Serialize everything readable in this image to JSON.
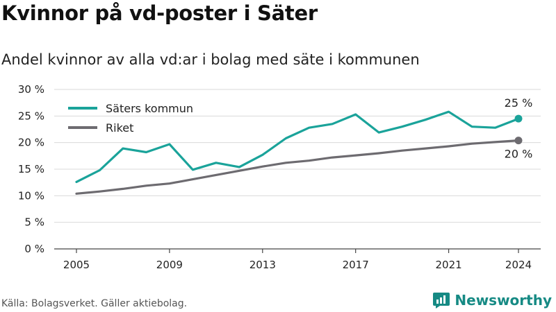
{
  "title": "Kvinnor på vd-poster i Säter",
  "subtitle": "Andel kvinnor av alla vd:ar i bolag med säte i kommunen",
  "source": "Källa: Bolagsverket. Gäller aktiebolag.",
  "brand": {
    "name": "Newsworthy",
    "icon": "newsworthy-logo-icon",
    "color": "#168a84"
  },
  "chart_data": {
    "type": "line",
    "ylim": [
      0,
      30
    ],
    "yticks": [
      0,
      5,
      10,
      15,
      20,
      25,
      30
    ],
    "ytick_labels": [
      "0 %",
      "5 %",
      "10 %",
      "15 %",
      "20 %",
      "25 %",
      "30 %"
    ],
    "xlim": [
      2005,
      2024
    ],
    "xticks": [
      2005,
      2009,
      2013,
      2017,
      2021,
      2024
    ],
    "xtick_labels": [
      "2005",
      "2009",
      "2013",
      "2017",
      "2021",
      "2024"
    ],
    "grid": "horizontal",
    "legend_position": "top-left",
    "x": [
      2005,
      2006,
      2007,
      2008,
      2009,
      2010,
      2011,
      2012,
      2013,
      2014,
      2015,
      2016,
      2017,
      2018,
      2019,
      2020,
      2021,
      2022,
      2023,
      2024
    ],
    "series": [
      {
        "name": "Säters kommun",
        "color": "#1aa39a",
        "values": [
          12.6,
          14.8,
          18.9,
          18.2,
          19.7,
          14.9,
          16.2,
          15.4,
          17.7,
          20.8,
          22.8,
          23.5,
          25.3,
          21.9,
          23.0,
          24.3,
          25.8,
          23.0,
          22.8,
          24.5
        ],
        "end_label": "25 %"
      },
      {
        "name": "Riket",
        "color": "#6d6b70",
        "values": [
          10.4,
          10.8,
          11.3,
          11.9,
          12.3,
          13.1,
          13.9,
          14.7,
          15.5,
          16.2,
          16.6,
          17.2,
          17.6,
          18.0,
          18.5,
          18.9,
          19.3,
          19.8,
          20.1,
          20.4
        ],
        "end_label": "20 %"
      }
    ]
  }
}
